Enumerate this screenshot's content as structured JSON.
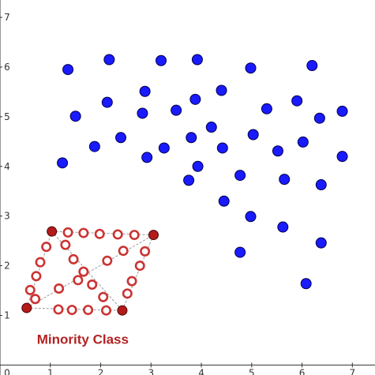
{
  "chart_data": {
    "type": "scatter",
    "title": "",
    "xlabel": "",
    "ylabel": "",
    "xlim": [
      0,
      7.45
    ],
    "ylim": [
      -0.2,
      7.35
    ],
    "grid": false,
    "x_ticks": [
      0,
      1,
      2,
      3,
      4,
      5,
      6,
      7
    ],
    "y_ticks": [
      1,
      2,
      3,
      4,
      5,
      6,
      7
    ],
    "tick_labels_x": [
      "0",
      "1",
      "2",
      "3",
      "4",
      "5",
      "6",
      "7"
    ],
    "tick_labels_y": [
      "1",
      "2",
      "3",
      "4",
      "5",
      "6",
      "7"
    ],
    "colors": {
      "majority_fill": "#1a1aff",
      "majority_stroke": "#00004d",
      "minority_solid_fill": "#b31b1b",
      "minority_solid_stroke": "#4d0000",
      "synthetic_ring": "#cc3333",
      "connector_line": "#999999",
      "annotation_text": "#b22222",
      "axis": "#333333"
    },
    "majority_points": [
      [
        1.35,
        5.95
      ],
      [
        2.17,
        6.15
      ],
      [
        3.2,
        6.13
      ],
      [
        3.92,
        6.15
      ],
      [
        4.98,
        5.98
      ],
      [
        6.2,
        6.03
      ],
      [
        1.5,
        5.01
      ],
      [
        2.13,
        5.29
      ],
      [
        2.4,
        4.58
      ],
      [
        1.88,
        4.4
      ],
      [
        1.24,
        4.07
      ],
      [
        2.88,
        5.51
      ],
      [
        2.83,
        5.07
      ],
      [
        3.5,
        5.13
      ],
      [
        3.88,
        5.35
      ],
      [
        4.4,
        5.53
      ],
      [
        3.8,
        4.58
      ],
      [
        3.26,
        4.37
      ],
      [
        2.92,
        4.18
      ],
      [
        4.2,
        4.79
      ],
      [
        4.42,
        4.37
      ],
      [
        5.03,
        4.64
      ],
      [
        5.3,
        5.16
      ],
      [
        5.52,
        4.31
      ],
      [
        5.9,
        5.32
      ],
      [
        6.35,
        4.97
      ],
      [
        6.8,
        5.11
      ],
      [
        6.8,
        4.2
      ],
      [
        6.02,
        4.49
      ],
      [
        3.93,
        4.0
      ],
      [
        3.75,
        3.72
      ],
      [
        4.77,
        3.82
      ],
      [
        5.65,
        3.74
      ],
      [
        6.38,
        3.63
      ],
      [
        4.45,
        3.3
      ],
      [
        4.98,
        2.99
      ],
      [
        5.62,
        2.78
      ],
      [
        6.38,
        2.46
      ],
      [
        4.77,
        2.27
      ],
      [
        6.08,
        1.64
      ]
    ],
    "minority_points": [
      [
        0.53,
        1.15
      ],
      [
        1.03,
        2.69
      ],
      [
        3.05,
        2.62
      ],
      [
        2.43,
        1.1
      ]
    ],
    "synthetic_points": [
      [
        1.35,
        2.67
      ],
      [
        1.66,
        2.66
      ],
      [
        1.98,
        2.64
      ],
      [
        2.34,
        2.63
      ],
      [
        2.67,
        2.62
      ],
      [
        0.92,
        2.38
      ],
      [
        0.8,
        2.07
      ],
      [
        0.72,
        1.79
      ],
      [
        0.6,
        1.51
      ],
      [
        0.7,
        1.33
      ],
      [
        1.3,
        2.42
      ],
      [
        1.46,
        2.13
      ],
      [
        1.66,
        1.88
      ],
      [
        1.83,
        1.62
      ],
      [
        2.05,
        1.37
      ],
      [
        1.55,
        1.71
      ],
      [
        1.17,
        1.54
      ],
      [
        2.13,
        2.1
      ],
      [
        2.45,
        2.3
      ],
      [
        2.88,
        2.29
      ],
      [
        2.78,
        2.0
      ],
      [
        2.62,
        1.69
      ],
      [
        2.53,
        1.44
      ],
      [
        1.16,
        1.12
      ],
      [
        1.43,
        1.11
      ],
      [
        1.75,
        1.11
      ],
      [
        2.11,
        1.1
      ]
    ],
    "connector_lines": [
      [
        [
          0.53,
          1.15
        ],
        [
          1.03,
          2.69
        ]
      ],
      [
        [
          1.03,
          2.69
        ],
        [
          3.05,
          2.62
        ]
      ],
      [
        [
          3.05,
          2.62
        ],
        [
          2.43,
          1.1
        ]
      ],
      [
        [
          0.53,
          1.15
        ],
        [
          2.43,
          1.1
        ]
      ],
      [
        [
          1.03,
          2.69
        ],
        [
          2.43,
          1.1
        ]
      ],
      [
        [
          0.53,
          1.15
        ],
        [
          3.05,
          2.62
        ]
      ]
    ],
    "annotations": [
      {
        "text": "Minority Class",
        "x": 1.0,
        "y": 0.52
      }
    ]
  }
}
